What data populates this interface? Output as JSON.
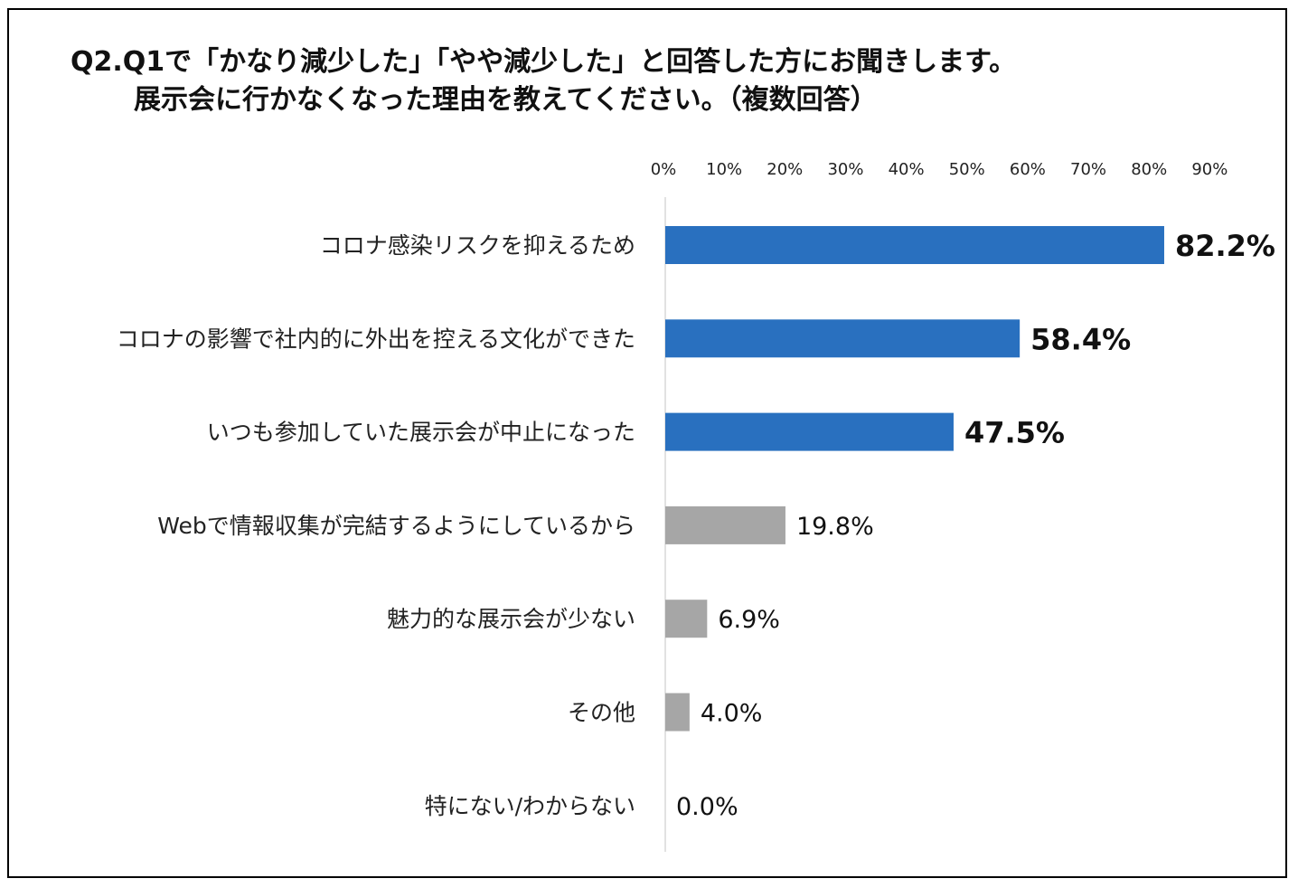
{
  "chart_data": {
    "type": "bar",
    "orientation": "horizontal",
    "title_line1": "Q2.Q1で「かなり減少した」「やや減少した」と回答した方にお聞きします。",
    "title_line2": "展示会に行かなくなった理由を教えてください。（複数回答）",
    "xlim": [
      0,
      90
    ],
    "x_ticks": [
      "0%",
      "10%",
      "20%",
      "30%",
      "40%",
      "50%",
      "60%",
      "70%",
      "80%",
      "90%"
    ],
    "x_tick_values": [
      0,
      10,
      20,
      30,
      40,
      50,
      60,
      70,
      80,
      90
    ],
    "axis_position": "top",
    "grid": false,
    "categories": [
      "コロナ感染リスクを抑えるため",
      "コロナの影響で社内的に外出を控える文化ができた",
      "いつも参加していた展示会が中止になった",
      "Webで情報収集が完結するようにしているから",
      "魅力的な展示会が少ない",
      "その他",
      "特にない/わからない"
    ],
    "values": [
      82.2,
      58.4,
      47.5,
      19.8,
      6.9,
      4.0,
      0.0
    ],
    "value_labels": [
      "82.2%",
      "58.4%",
      "47.5%",
      "19.8%",
      "6.9%",
      "4.0%",
      "0.0%"
    ],
    "highlighted": [
      true,
      true,
      true,
      false,
      false,
      false,
      false
    ],
    "colors": {
      "highlight": "#2970BF",
      "normal": "#A6A6A6",
      "axis": "#D9D9D9"
    }
  }
}
